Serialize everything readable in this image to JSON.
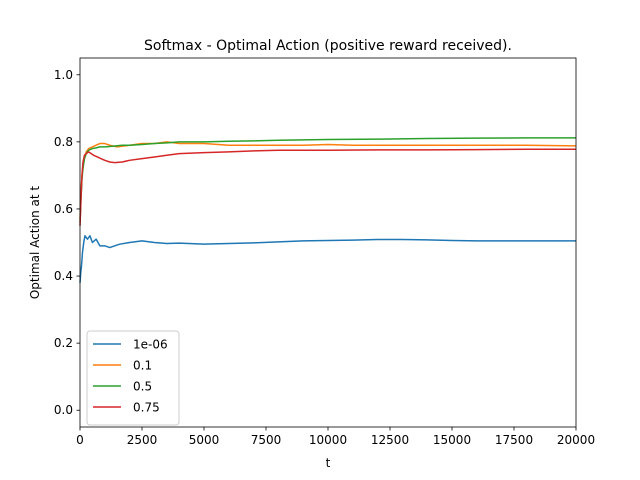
{
  "chart_data": {
    "type": "line",
    "title": "Softmax - Optimal Action (positive reward received).",
    "xlabel": "t",
    "ylabel": "Optimal Action at t",
    "xlim": [
      0,
      20000
    ],
    "ylim": [
      -0.05,
      1.05
    ],
    "xticks": [
      0,
      2500,
      5000,
      7500,
      10000,
      12500,
      15000,
      17500,
      20000
    ],
    "xtick_labels": [
      "0",
      "2500",
      "5000",
      "7500",
      "10000",
      "12500",
      "15000",
      "17500",
      "20000"
    ],
    "yticks": [
      0.0,
      0.2,
      0.4,
      0.6,
      0.8,
      1.0
    ],
    "ytick_labels": [
      "0.0",
      "0.2",
      "0.4",
      "0.6",
      "0.8",
      "1.0"
    ],
    "grid": false,
    "legend_position": "lower-left",
    "series": [
      {
        "name": "1e-06",
        "color": "#1f77b4",
        "x": [
          1,
          30,
          60,
          100,
          150,
          200,
          300,
          400,
          500,
          650,
          800,
          1000,
          1200,
          1400,
          1600,
          2000,
          2500,
          3000,
          3500,
          4000,
          5000,
          6000,
          7000,
          8000,
          9000,
          10000,
          11000,
          12000,
          13000,
          14000,
          15000,
          16000,
          17000,
          18000,
          19000,
          20000
        ],
        "y": [
          0.38,
          0.41,
          0.43,
          0.47,
          0.5,
          0.52,
          0.51,
          0.52,
          0.5,
          0.51,
          0.49,
          0.49,
          0.485,
          0.49,
          0.495,
          0.5,
          0.505,
          0.5,
          0.497,
          0.498,
          0.495,
          0.497,
          0.499,
          0.502,
          0.505,
          0.506,
          0.507,
          0.509,
          0.509,
          0.508,
          0.506,
          0.505,
          0.505,
          0.505,
          0.505,
          0.505
        ]
      },
      {
        "name": "0.1",
        "color": "#ff7f0e",
        "x": [
          1,
          40,
          80,
          120,
          180,
          250,
          350,
          500,
          650,
          800,
          1000,
          1200,
          1500,
          2000,
          2500,
          3000,
          3500,
          4000,
          5000,
          6000,
          7000,
          8000,
          9000,
          10000,
          11000,
          12000,
          14000,
          16000,
          18000,
          20000
        ],
        "y": [
          0.57,
          0.65,
          0.7,
          0.73,
          0.75,
          0.77,
          0.78,
          0.785,
          0.79,
          0.795,
          0.795,
          0.79,
          0.785,
          0.79,
          0.795,
          0.795,
          0.8,
          0.795,
          0.795,
          0.79,
          0.79,
          0.79,
          0.79,
          0.792,
          0.79,
          0.79,
          0.79,
          0.79,
          0.79,
          0.788
        ]
      },
      {
        "name": "0.5",
        "color": "#2ca02c",
        "x": [
          1,
          40,
          80,
          120,
          180,
          250,
          350,
          500,
          650,
          800,
          1000,
          1300,
          1700,
          2000,
          2500,
          3000,
          3500,
          4000,
          5000,
          6000,
          7000,
          8000,
          9000,
          10000,
          12000,
          14000,
          16000,
          18000,
          20000
        ],
        "y": [
          0.56,
          0.63,
          0.69,
          0.72,
          0.75,
          0.765,
          0.775,
          0.78,
          0.782,
          0.785,
          0.785,
          0.787,
          0.79,
          0.79,
          0.792,
          0.795,
          0.797,
          0.8,
          0.8,
          0.802,
          0.803,
          0.805,
          0.806,
          0.807,
          0.808,
          0.81,
          0.811,
          0.812,
          0.812
        ]
      },
      {
        "name": "0.75",
        "color": "#d62728",
        "x": [
          1,
          40,
          80,
          120,
          180,
          250,
          350,
          450,
          550,
          700,
          850,
          1000,
          1200,
          1400,
          1700,
          2000,
          2500,
          3000,
          3500,
          4000,
          5000,
          6000,
          7000,
          8000,
          9000,
          10000,
          12000,
          14000,
          16000,
          18000,
          20000
        ],
        "y": [
          0.55,
          0.63,
          0.7,
          0.74,
          0.76,
          0.765,
          0.77,
          0.765,
          0.76,
          0.755,
          0.75,
          0.745,
          0.74,
          0.738,
          0.74,
          0.745,
          0.75,
          0.755,
          0.76,
          0.765,
          0.768,
          0.77,
          0.773,
          0.775,
          0.775,
          0.775,
          0.776,
          0.776,
          0.777,
          0.778,
          0.778
        ]
      }
    ]
  }
}
